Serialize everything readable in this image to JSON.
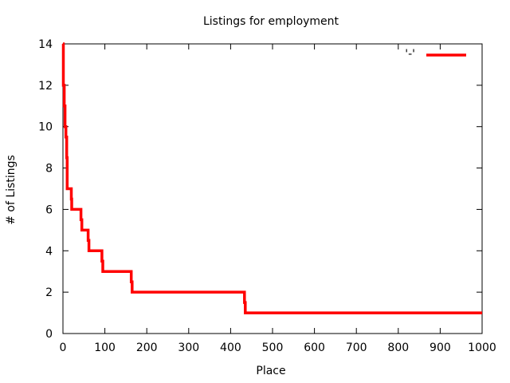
{
  "chart_data": {
    "type": "line",
    "title": "Listings for employment",
    "xlabel": "Place",
    "ylabel": "# of Listings",
    "xlim": [
      0,
      1000
    ],
    "ylim": [
      0,
      14
    ],
    "x_ticks": [
      0,
      100,
      200,
      300,
      400,
      500,
      600,
      700,
      800,
      900,
      1000
    ],
    "y_ticks": [
      0,
      2,
      4,
      6,
      8,
      10,
      12,
      14
    ],
    "grid": false,
    "legend_position": "top-right",
    "series": [
      {
        "legend_label": "'-'",
        "color": "#ff0000",
        "step": true,
        "points": [
          {
            "x": 0,
            "y": 14
          },
          {
            "x": 1,
            "y": 12
          },
          {
            "x": 3,
            "y": 11
          },
          {
            "x": 5,
            "y": 10
          },
          {
            "x": 7,
            "y": 9.5
          },
          {
            "x": 9,
            "y": 8.5
          },
          {
            "x": 10,
            "y": 7
          },
          {
            "x": 20,
            "y": 6.5
          },
          {
            "x": 21,
            "y": 6
          },
          {
            "x": 43,
            "y": 5.5
          },
          {
            "x": 45,
            "y": 5
          },
          {
            "x": 60,
            "y": 4.5
          },
          {
            "x": 62,
            "y": 4
          },
          {
            "x": 93,
            "y": 3.5
          },
          {
            "x": 95,
            "y": 3
          },
          {
            "x": 163,
            "y": 2.5
          },
          {
            "x": 165,
            "y": 2
          },
          {
            "x": 433,
            "y": 1.5
          },
          {
            "x": 435,
            "y": 1
          },
          {
            "x": 1000,
            "y": 1
          }
        ]
      }
    ]
  }
}
